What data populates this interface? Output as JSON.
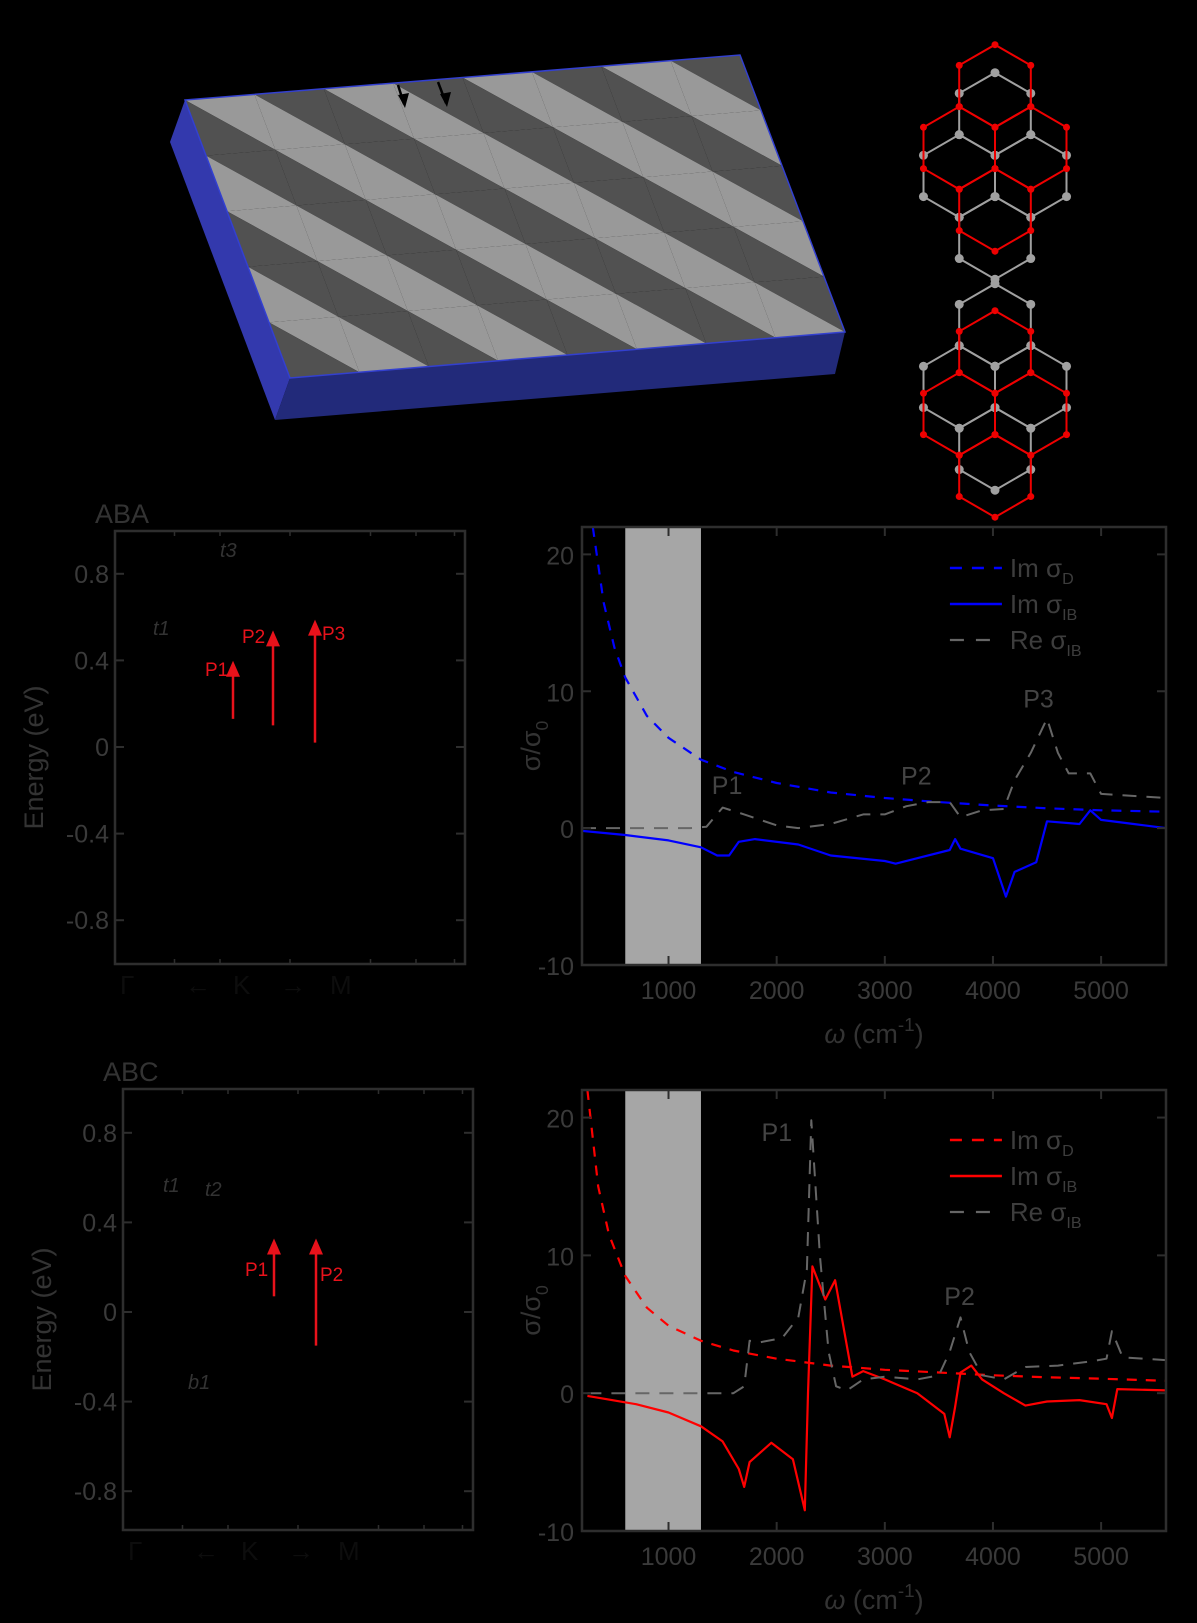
{
  "figure": {
    "panel_a": {
      "description": "3D slab with triangular superlattice (light/dark gray domains) on blue substrate",
      "colors": {
        "light_domain": "#999999",
        "dark_domain": "#515151",
        "substrate_side": "#3339ad",
        "substrate_front": "#222a7a",
        "edge": "#3340d0"
      },
      "stacking_diagrams": [
        {
          "name": "ABA",
          "top_layer_color": "#ee0000",
          "bottom_layer_color": "#a0a0a0"
        },
        {
          "name": "ABC",
          "top_layer_color": "#ee0000",
          "bottom_layer_color": "#a0a0a0"
        }
      ]
    },
    "band_panels": [
      {
        "title": "ABA",
        "ylabel": "Energy (eV)",
        "yticks": [
          "0.8",
          "0.4",
          "0",
          "-0.4",
          "-0.8"
        ],
        "kpath": [
          "Γ",
          "←",
          "K",
          "→",
          "M"
        ],
        "band_labels": [
          {
            "text": "t3",
            "e": 0.92
          },
          {
            "text": "t1",
            "e": 0.57
          }
        ],
        "transitions": [
          {
            "label": "P1",
            "from": 0.13,
            "to": 0.38
          },
          {
            "label": "P2",
            "from": 0.1,
            "to": 0.52
          },
          {
            "label": "P3",
            "from": 0.02,
            "to": 0.57
          }
        ]
      },
      {
        "title": "ABC",
        "ylabel": "Energy (eV)",
        "yticks": [
          "0.8",
          "0.4",
          "0",
          "-0.4",
          "-0.8"
        ],
        "kpath": [
          "Γ",
          "←",
          "K",
          "→",
          "M"
        ],
        "band_labels": [
          {
            "text": "t1",
            "e": 0.58
          },
          {
            "text": "t2",
            "e": 0.55
          },
          {
            "text": "b1",
            "e": -0.32
          }
        ],
        "transitions": [
          {
            "label": "P1",
            "from": 0.07,
            "to": 0.31
          },
          {
            "label": "P2",
            "from": -0.15,
            "to": 0.31
          }
        ]
      }
    ]
  },
  "chart_data": [
    {
      "type": "line",
      "title": "ABA",
      "xlabel": "ω (cm⁻¹)",
      "ylabel": "σ/σ₀",
      "xlim": [
        200,
        5600
      ],
      "ylim": [
        -10,
        22
      ],
      "xticks": [
        1000,
        2000,
        3000,
        4000,
        5000
      ],
      "yticks": [
        -10,
        0,
        10,
        20
      ],
      "shaded_band": [
        600,
        1300
      ],
      "legend": [
        "Im σD",
        "Im σIB",
        "Re σIB"
      ],
      "legend_position": "upper right",
      "annotations": [
        "P1",
        "P2",
        "P3"
      ],
      "series": [
        {
          "name": "Im σD",
          "style": "dashed",
          "color": "#0000ff",
          "x": [
            300,
            400,
            500,
            600,
            800,
            1000,
            1300,
            1600,
            2000,
            2500,
            3000,
            3500,
            4000,
            4500,
            5000,
            5600
          ],
          "y": [
            22,
            16.5,
            13.2,
            11,
            8.2,
            6.6,
            5.0,
            4.1,
            3.3,
            2.6,
            2.2,
            1.9,
            1.65,
            1.45,
            1.3,
            1.2
          ]
        },
        {
          "name": "Im σIB",
          "style": "solid",
          "color": "#0000ff",
          "x": [
            200,
            600,
            1000,
            1300,
            1450,
            1560,
            1650,
            1800,
            2200,
            2500,
            3000,
            3100,
            3300,
            3600,
            3650,
            3700,
            4000,
            4120,
            4200,
            4400,
            4450,
            4500,
            4800,
            4900,
            5000,
            5300,
            5600
          ],
          "y": [
            -0.2,
            -0.5,
            -0.9,
            -1.4,
            -2.0,
            -2.0,
            -1.0,
            -0.8,
            -1.2,
            -2.0,
            -2.4,
            -2.6,
            -2.2,
            -1.6,
            -0.8,
            -1.5,
            -2.2,
            -5.0,
            -3.2,
            -2.5,
            -1.0,
            0.5,
            0.3,
            1.3,
            0.6,
            0.3,
            0.0
          ]
        },
        {
          "name": "Re σIB",
          "style": "dashed",
          "color": "#666666",
          "x": [
            200,
            1200,
            1350,
            1500,
            1700,
            2000,
            2200,
            2500,
            2800,
            3000,
            3200,
            3400,
            3600,
            3700,
            3900,
            4100,
            4200,
            4350,
            4500,
            4600,
            4700,
            4900,
            5000,
            5600
          ],
          "y": [
            0,
            0,
            0.1,
            1.5,
            1.0,
            0.2,
            0.0,
            0.3,
            1.0,
            1.0,
            1.6,
            1.9,
            1.9,
            0.8,
            1.3,
            1.4,
            3.5,
            5.5,
            8.0,
            5.5,
            4.0,
            4.0,
            2.5,
            2.2
          ]
        }
      ]
    },
    {
      "type": "line",
      "title": "ABC",
      "xlabel": "ω (cm⁻¹)",
      "ylabel": "σ/σ₀",
      "xlim": [
        200,
        5600
      ],
      "ylim": [
        -10,
        22
      ],
      "xticks": [
        1000,
        2000,
        3000,
        4000,
        5000
      ],
      "yticks": [
        -10,
        0,
        10,
        20
      ],
      "shaded_band": [
        600,
        1300
      ],
      "legend": [
        "Im σD",
        "Im σIB",
        "Re σIB"
      ],
      "legend_position": "upper right",
      "annotations": [
        "P1",
        "P2"
      ],
      "series": [
        {
          "name": "Im σD",
          "style": "dashed",
          "color": "#ff0000",
          "x": [
            250,
            350,
            450,
            600,
            800,
            1000,
            1300,
            1600,
            2000,
            2500,
            3000,
            3500,
            4000,
            4500,
            5000,
            5600
          ],
          "y": [
            22,
            15,
            11.5,
            8.5,
            6.2,
            4.9,
            3.8,
            3.1,
            2.5,
            2.0,
            1.7,
            1.5,
            1.3,
            1.15,
            1.05,
            0.9
          ]
        },
        {
          "name": "Im σIB",
          "style": "solid",
          "color": "#ff0000",
          "x": [
            250,
            700,
            1000,
            1300,
            1500,
            1650,
            1700,
            1750,
            1950,
            2150,
            2260,
            2290,
            2330,
            2450,
            2540,
            2700,
            2800,
            3000,
            3300,
            3550,
            3600,
            3650,
            3700,
            3800,
            3900,
            4100,
            4300,
            4500,
            4800,
            5050,
            5100,
            5150,
            5600
          ],
          "y": [
            -0.2,
            -0.8,
            -1.4,
            -2.4,
            -3.5,
            -5.5,
            -6.8,
            -5.0,
            -3.6,
            -4.8,
            -8.5,
            0,
            9.2,
            6.8,
            8.2,
            1.2,
            1.6,
            1.0,
            0.0,
            -1.5,
            -3.2,
            -1.0,
            1.5,
            2.0,
            1.0,
            0.0,
            -0.9,
            -0.6,
            -0.5,
            -0.8,
            -1.8,
            0.3,
            0.2
          ]
        },
        {
          "name": "Re σIB",
          "style": "dashed",
          "color": "#666666",
          "x": [
            250,
            1600,
            1700,
            1750,
            1850,
            2050,
            2200,
            2280,
            2320,
            2400,
            2480,
            2550,
            2650,
            2800,
            3000,
            3300,
            3500,
            3600,
            3700,
            3780,
            3900,
            4100,
            4300,
            4600,
            4900,
            5050,
            5100,
            5200,
            5600
          ],
          "y": [
            0,
            0,
            0.5,
            3.8,
            3.7,
            4.0,
            5.5,
            9.0,
            19.8,
            10.0,
            3.0,
            0.5,
            0.2,
            1.0,
            1.2,
            1.0,
            1.3,
            3.0,
            5.5,
            3.0,
            1.3,
            1.0,
            1.9,
            2.0,
            2.3,
            2.5,
            4.5,
            2.6,
            2.4
          ]
        }
      ]
    }
  ]
}
